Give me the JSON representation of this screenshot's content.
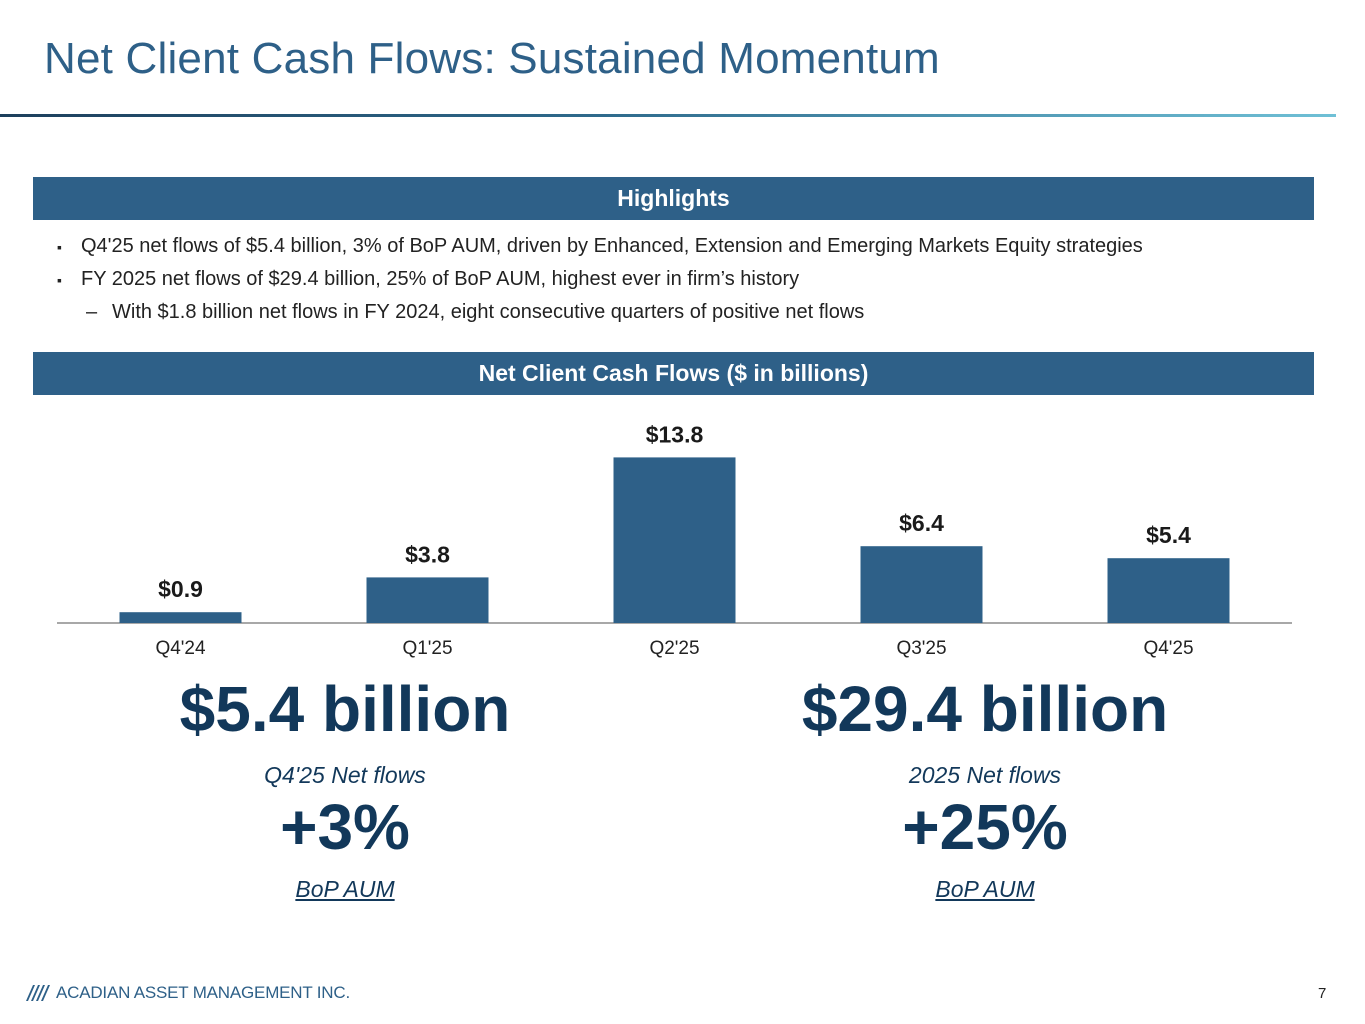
{
  "title": "Net Client Cash Flows: Sustained Momentum",
  "highlights": {
    "header": "Highlights",
    "bullets": [
      "Q4'25 net flows of $5.4 billion, 3% of BoP AUM, driven by Enhanced, Extension and Emerging Markets Equity strategies",
      "FY 2025 net flows of $29.4 billion, 25% of BoP AUM, highest ever in firm’s history"
    ],
    "sub_bullet": "With $1.8 billion net flows in FY 2024, eight consecutive quarters of positive net flows",
    "bullet_marker": "▪",
    "dash_marker": "–"
  },
  "chart_header": "Net Client Cash Flows ($ in billions)",
  "chart_data": {
    "type": "bar",
    "categories": [
      "Q4'24",
      "Q1'25",
      "Q2'25",
      "Q3'25",
      "Q4'25"
    ],
    "values": [
      0.9,
      3.8,
      13.8,
      6.4,
      5.4
    ],
    "data_labels": [
      "$0.9",
      "$3.8",
      "$13.8",
      "$6.4",
      "$5.4"
    ],
    "title": "",
    "xlabel": "",
    "ylabel": "",
    "ylim": [
      0,
      14
    ],
    "grid": false,
    "bar_color": "#2e6088"
  },
  "summary": {
    "left": {
      "value": "$5.4 billion",
      "caption": "Q4'25 Net flows",
      "pct": "+3%",
      "note": "BoP AUM"
    },
    "right": {
      "value": "$29.4 billion",
      "caption": "2025 Net flows",
      "pct": "+25%",
      "note": "BoP AUM"
    }
  },
  "footer": {
    "company": "ACADIAN ASSET MANAGEMENT INC.",
    "page": "7"
  },
  "colors": {
    "title": "#2e6088",
    "bar": "#2e6088",
    "emphasis": "#12385a"
  }
}
